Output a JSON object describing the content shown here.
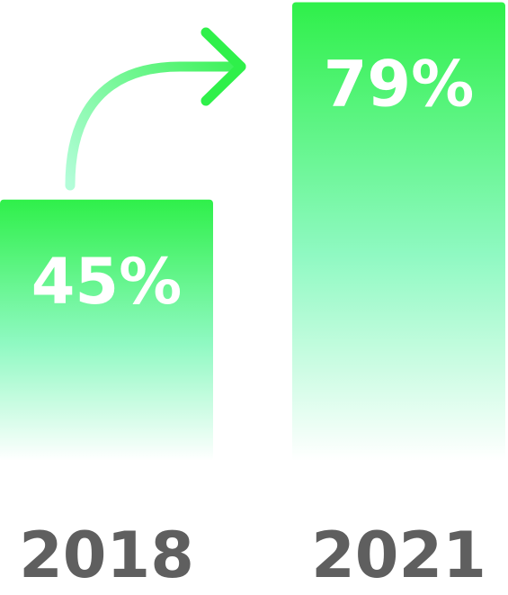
{
  "chart_data": {
    "type": "bar",
    "categories": [
      "2018",
      "2021"
    ],
    "values": [
      45,
      79
    ],
    "value_labels": [
      "45%",
      "79%"
    ],
    "title": "",
    "xlabel": "",
    "ylabel": "",
    "ylim": [
      0,
      100
    ],
    "grid": false,
    "legend": "none",
    "annotation": "arrow-from-2018-to-2021"
  },
  "colors": {
    "bar_top": "#2ff04a",
    "bar_bottom": "#ffffff",
    "arrow_start": "#b3fdd9",
    "arrow_end": "#2ff04a",
    "value_text": "#ffffff",
    "category_text": "#5f5f5f"
  }
}
